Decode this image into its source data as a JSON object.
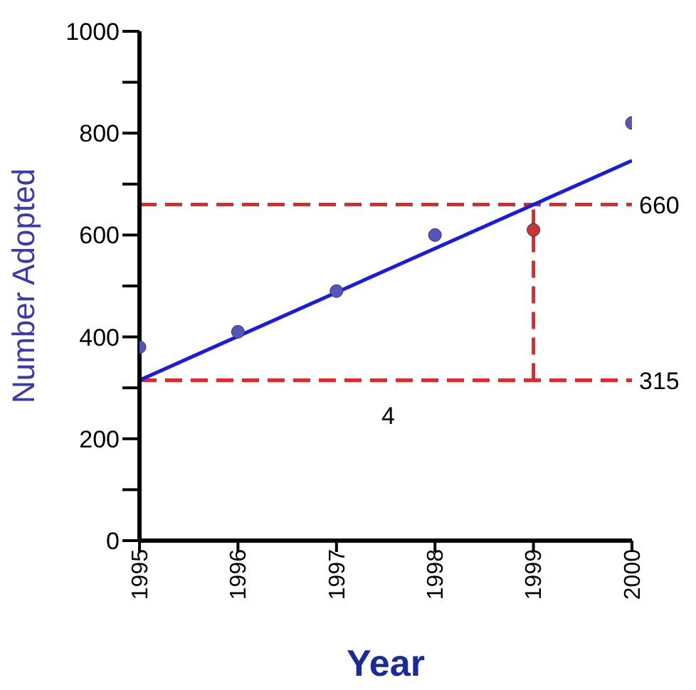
{
  "chart_data": {
    "type": "scatter",
    "xlabel": "Year",
    "ylabel": "Number Adopted",
    "xlim": [
      1995,
      2000
    ],
    "xticks": [
      1995,
      1996,
      1997,
      1998,
      1999,
      2000
    ],
    "ylim": [
      0,
      1000
    ],
    "yticks": [
      0,
      {
        "value": 100,
        "label": null
      },
      200,
      {
        "value": 300,
        "label": null
      },
      400,
      {
        "value": 500,
        "label": null
      },
      600,
      {
        "value": 700,
        "label": null
      },
      800,
      {
        "value": 900,
        "label": null
      },
      1000
    ],
    "x": [
      1995,
      1996,
      1997,
      1998,
      1999,
      2000
    ],
    "series": [
      {
        "values": [
          380,
          410,
          490,
          600,
          610,
          820
        ],
        "colors": [
          "#5555bb",
          "#5555bb",
          "#5555bb",
          "#5555bb",
          "#cc3333",
          "#5555bb"
        ],
        "marker": "circle"
      },
      {
        "type": "line",
        "x": [
          1995,
          2000
        ],
        "values": [
          315,
          746
        ],
        "color": "#1a1ae6",
        "line_style": "solid",
        "marker": "none"
      },
      {
        "type": "line",
        "x": [
          1999,
          1999
        ],
        "values": [
          315,
          660
        ],
        "color": "#dd2a2a",
        "line_style": "dashed",
        "marker": "none"
      }
    ],
    "ref_lines": [
      {
        "axis": "y",
        "value": 660,
        "label": "660",
        "color": "#dd2a2a",
        "line_style": "dashed"
      },
      {
        "axis": "y",
        "value": 315,
        "label": "315",
        "color": "#dd2a2a",
        "line_style": "dashed"
      }
    ],
    "annotations": [
      "4"
    ]
  }
}
